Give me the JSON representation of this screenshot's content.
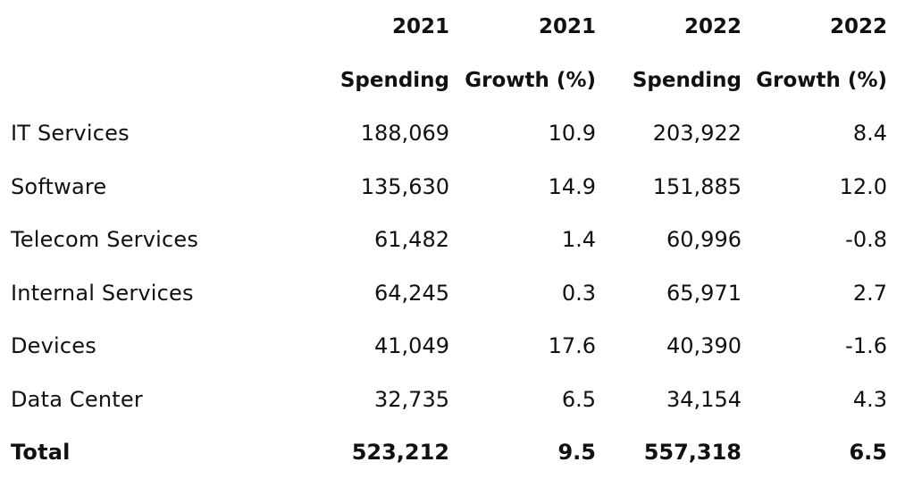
{
  "chart_data": {
    "type": "table",
    "columns": [
      {
        "year": "2021",
        "metric": "Spending"
      },
      {
        "year": "2021",
        "metric": "Growth (%)"
      },
      {
        "year": "2022",
        "metric": "Spending"
      },
      {
        "year": "2022",
        "metric": "Growth (%)"
      }
    ],
    "rows": [
      {
        "label": "IT Services",
        "values": [
          "188,069",
          "10.9",
          "203,922",
          "8.4"
        ]
      },
      {
        "label": "Software",
        "values": [
          "135,630",
          "14.9",
          "151,885",
          "12.0"
        ]
      },
      {
        "label": "Telecom Services",
        "values": [
          "61,482",
          "1.4",
          "60,996",
          "-0.8"
        ]
      },
      {
        "label": "Internal Services",
        "values": [
          "64,245",
          "0.3",
          "65,971",
          "2.7"
        ]
      },
      {
        "label": "Devices",
        "values": [
          "41,049",
          "17.6",
          "40,390",
          "-1.6"
        ]
      },
      {
        "label": "Data Center",
        "values": [
          "32,735",
          "6.5",
          "34,154",
          "4.3"
        ]
      },
      {
        "label": "Total",
        "values": [
          "523,212",
          "9.5",
          "557,318",
          "6.5"
        ]
      }
    ]
  },
  "colors": {
    "text": "#111111",
    "background": "#ffffff"
  }
}
